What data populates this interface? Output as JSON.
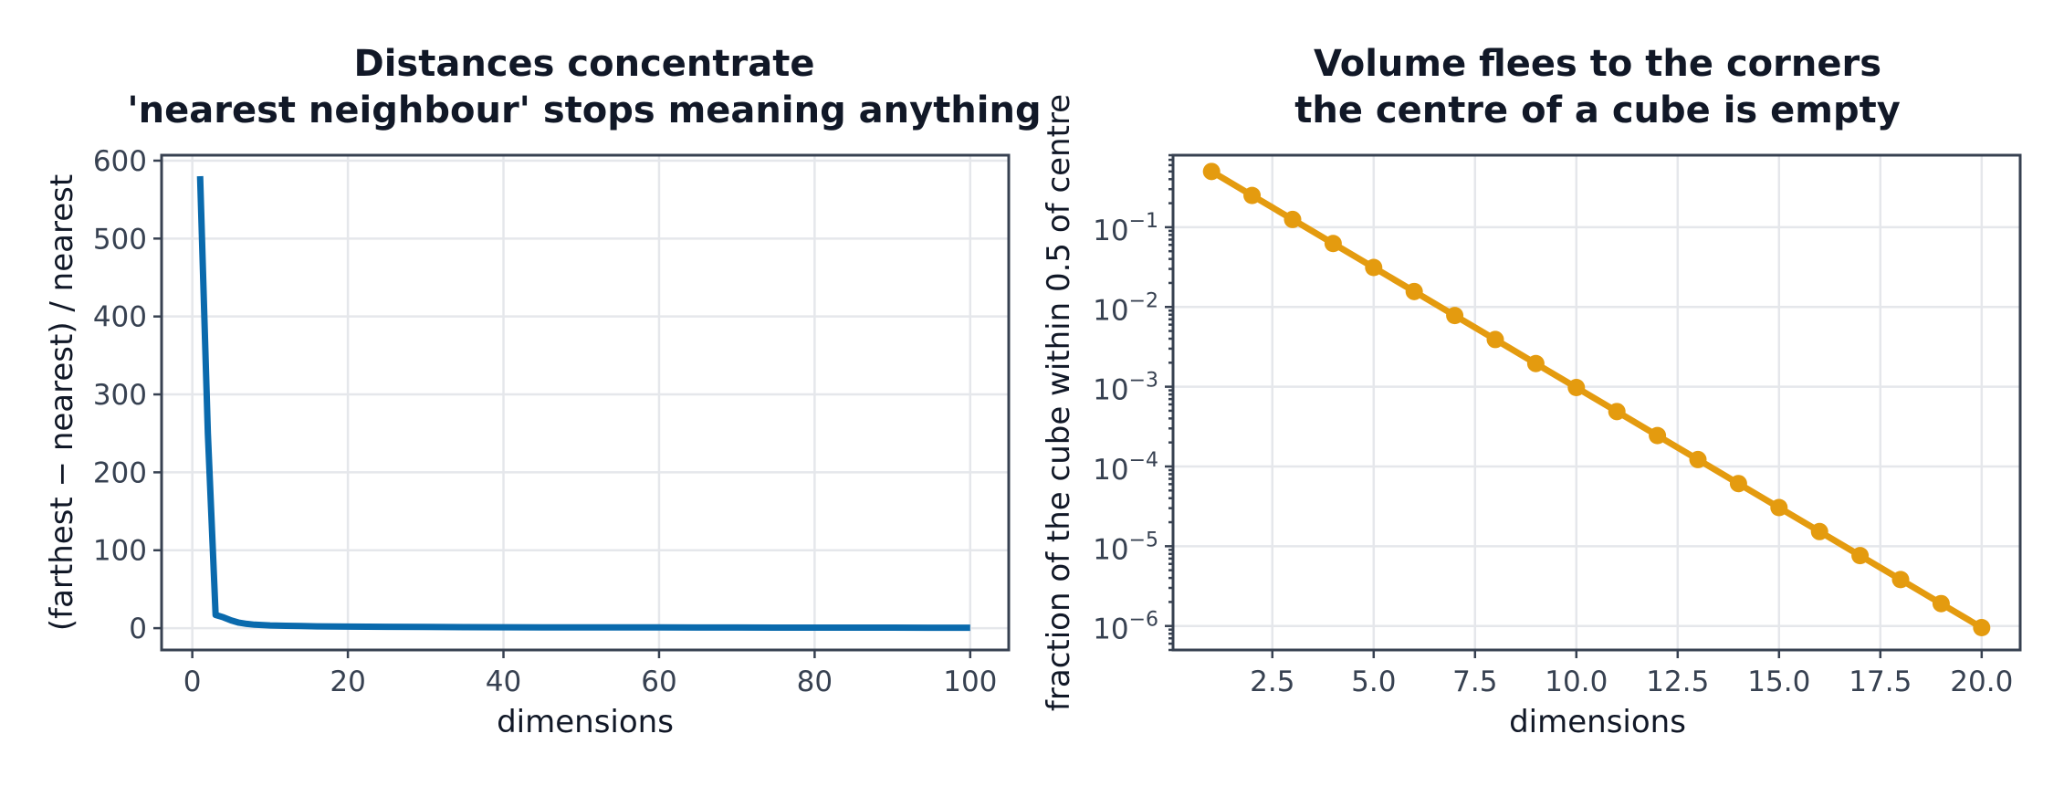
{
  "colors": {
    "series_left": "#0a6aad",
    "series_right": "#e49b0f",
    "grid": "#e5e7eb",
    "axis": "#374151",
    "text": "#111827"
  },
  "chart_data": [
    {
      "type": "line",
      "title": "Distances concentrate",
      "subtitle": "'nearest neighbour' stops meaning anything",
      "xlabel": "dimensions",
      "ylabel": "(farthest − nearest) / nearest",
      "xlim": [
        -3.95,
        104.95
      ],
      "ylim": [
        -28,
        607
      ],
      "yscale": "linear",
      "grid": true,
      "xticks": [
        0,
        20,
        40,
        60,
        80,
        100
      ],
      "xtick_labels": [
        "0",
        "20",
        "40",
        "60",
        "80",
        "100"
      ],
      "yticks": [
        0,
        100,
        200,
        300,
        400,
        500,
        600
      ],
      "ytick_labels": [
        "0",
        "100",
        "200",
        "300",
        "400",
        "500",
        "600"
      ],
      "series": [
        {
          "x": [
            1,
            2,
            3,
            4,
            5,
            6,
            7,
            8,
            10,
            12,
            14,
            16,
            18,
            20,
            25,
            30,
            35,
            40,
            45,
            50,
            55,
            60,
            65,
            70,
            75,
            80,
            85,
            90,
            95,
            100
          ],
          "values": [
            580,
            250,
            17,
            14,
            10,
            7,
            5.5,
            4.5,
            3.5,
            3,
            2.7,
            2.4,
            2.2,
            2,
            1.7,
            1.5,
            1.3,
            1.2,
            1.1,
            1,
            0.95,
            0.9,
            0.85,
            0.8,
            0.75,
            0.7,
            0.68,
            0.65,
            0.62,
            0.6
          ]
        }
      ]
    },
    {
      "type": "line",
      "title": "Volume flees to the corners",
      "subtitle": "the centre of a cube is empty",
      "xlabel": "dimensions",
      "ylabel": "fraction of the cube within 0.5 of centre",
      "xlim": [
        0.05,
        20.95
      ],
      "ylim": [
        5e-07,
        0.8
      ],
      "yscale": "log",
      "grid": true,
      "xticks": [
        2.5,
        5.0,
        7.5,
        10.0,
        12.5,
        15.0,
        17.5,
        20.0
      ],
      "xtick_labels": [
        "2.5",
        "5.0",
        "7.5",
        "10.0",
        "12.5",
        "15.0",
        "17.5",
        "20.0"
      ],
      "yticks": [
        0.1,
        0.01,
        0.001,
        0.0001,
        1e-05,
        1e-06
      ],
      "ytick_bases": [
        "10",
        "10",
        "10",
        "10",
        "10",
        "10"
      ],
      "ytick_exponents": [
        "−1",
        "−2",
        "−3",
        "−4",
        "−5",
        "−6"
      ],
      "series": [
        {
          "x": [
            1,
            2,
            3,
            4,
            5,
            6,
            7,
            8,
            9,
            10,
            11,
            12,
            13,
            14,
            15,
            16,
            17,
            18,
            19,
            20
          ],
          "values": [
            0.5,
            0.25,
            0.125,
            0.0625,
            0.03125,
            0.015625,
            0.0078125,
            0.00390625,
            0.001953125,
            0.0009765625,
            0.00048828125,
            0.000244140625,
            0.0001220703125,
            6.103515625e-05,
            3.0517578125e-05,
            1.52587890625e-05,
            7.62939453125e-06,
            3.814697265625e-06,
            1.9073486328125e-06,
            9.5367431640625e-07
          ],
          "markers": true
        }
      ]
    }
  ]
}
